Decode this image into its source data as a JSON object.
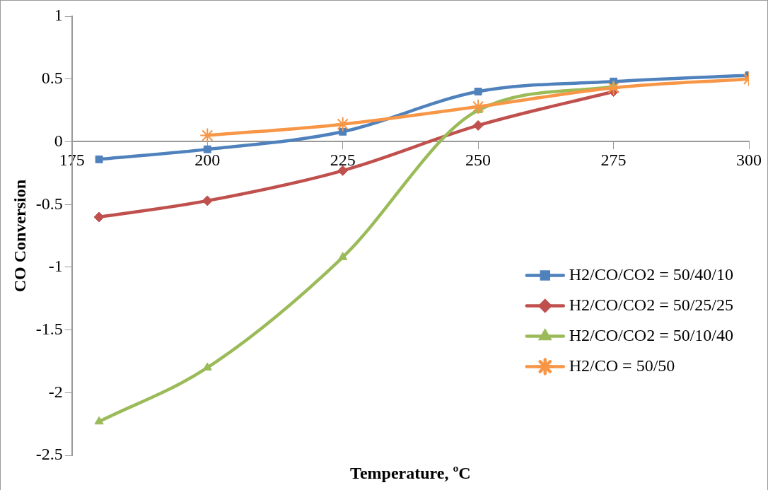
{
  "chart_data": {
    "type": "line",
    "xlabel": "Temperature, ºC",
    "ylabel": "CO Conversion",
    "x": [
      180,
      200,
      225,
      250,
      275,
      300
    ],
    "series": [
      {
        "name": "H2/CO/CO2 = 50/40/10",
        "color": "#4f81bd",
        "marker": "square",
        "values": [
          -0.14,
          -0.06,
          0.08,
          0.4,
          0.48,
          0.53
        ]
      },
      {
        "name": "H2/CO/CO2 = 50/25/25",
        "color": "#c0504d",
        "marker": "diamond",
        "values": [
          -0.6,
          -0.47,
          -0.23,
          0.13,
          0.4,
          null
        ]
      },
      {
        "name": "H2/CO/CO2 = 50/10/40",
        "color": "#9bbb59",
        "marker": "triangle",
        "values": [
          -2.23,
          -1.8,
          -0.92,
          0.25,
          0.44,
          null
        ]
      },
      {
        "name": "H2/CO = 50/50",
        "color": "#f79646",
        "marker": "cross",
        "values": [
          null,
          0.05,
          0.14,
          0.28,
          0.43,
          0.5
        ]
      }
    ],
    "xlim": [
      175,
      300
    ],
    "xticks": [
      175,
      200,
      225,
      250,
      275,
      300
    ],
    "ylim": [
      -2.5,
      1
    ],
    "yticks": [
      -2.5,
      -2,
      -1.5,
      -1,
      -0.5,
      0,
      0.5,
      1
    ],
    "grid": false,
    "legend": "right"
  }
}
